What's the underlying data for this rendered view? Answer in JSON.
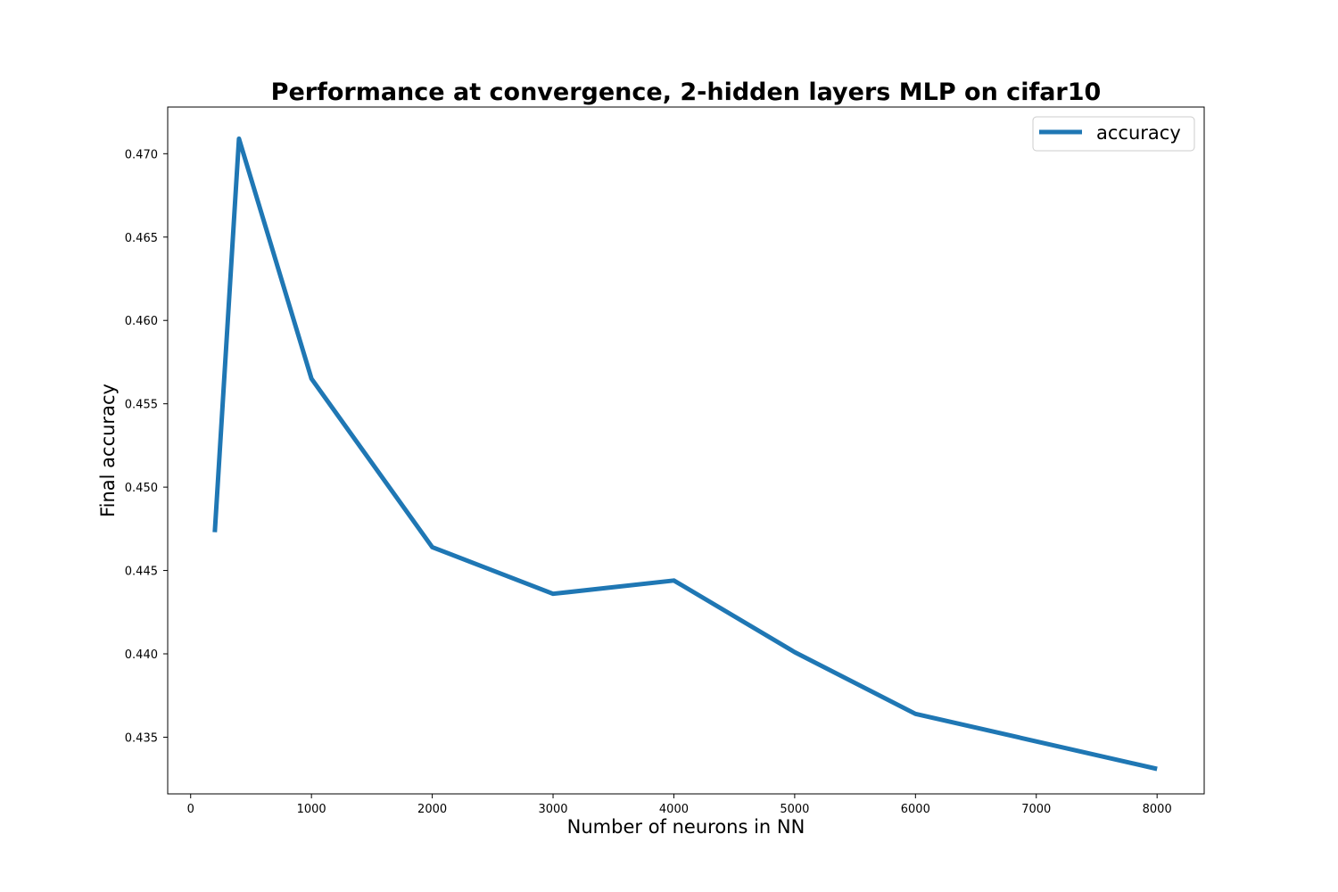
{
  "chart_data": {
    "type": "line",
    "title": "Performance at convergence, 2-hidden layers MLP on cifar10",
    "xlabel": "Number of neurons in NN",
    "ylabel": "Final accuracy",
    "xlim": [
      -190,
      8390
    ],
    "ylim": [
      0.4316,
      0.4728
    ],
    "x_ticks": [
      0,
      1000,
      2000,
      3000,
      4000,
      5000,
      6000,
      7000,
      8000
    ],
    "x_tick_labels": [
      "0",
      "1000",
      "2000",
      "3000",
      "4000",
      "5000",
      "6000",
      "7000",
      "8000"
    ],
    "y_ticks": [
      0.435,
      0.44,
      0.445,
      0.45,
      0.455,
      0.46,
      0.465,
      0.47
    ],
    "y_tick_labels": [
      "0.435",
      "0.440",
      "0.445",
      "0.450",
      "0.455",
      "0.460",
      "0.465",
      "0.470"
    ],
    "grid": false,
    "legend_position": "top-right",
    "series": [
      {
        "name": "accuracy",
        "color": "#1f77b4",
        "x": [
          200,
          400,
          1000,
          2000,
          3000,
          4000,
          5000,
          6000,
          8000
        ],
        "y": [
          0.4473,
          0.4709,
          0.4565,
          0.4464,
          0.4436,
          0.4444,
          0.4401,
          0.4364,
          0.4331
        ]
      }
    ]
  }
}
